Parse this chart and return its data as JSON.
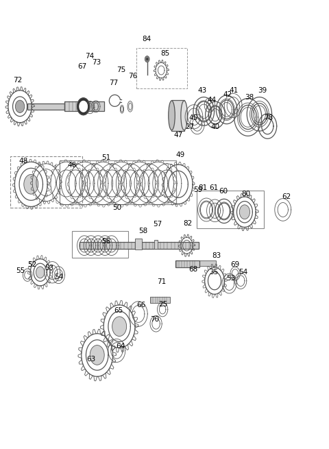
{
  "bg_color": "#ffffff",
  "line_color": "#555555",
  "label_color": "#000000",
  "label_fontsize": 7.5
}
